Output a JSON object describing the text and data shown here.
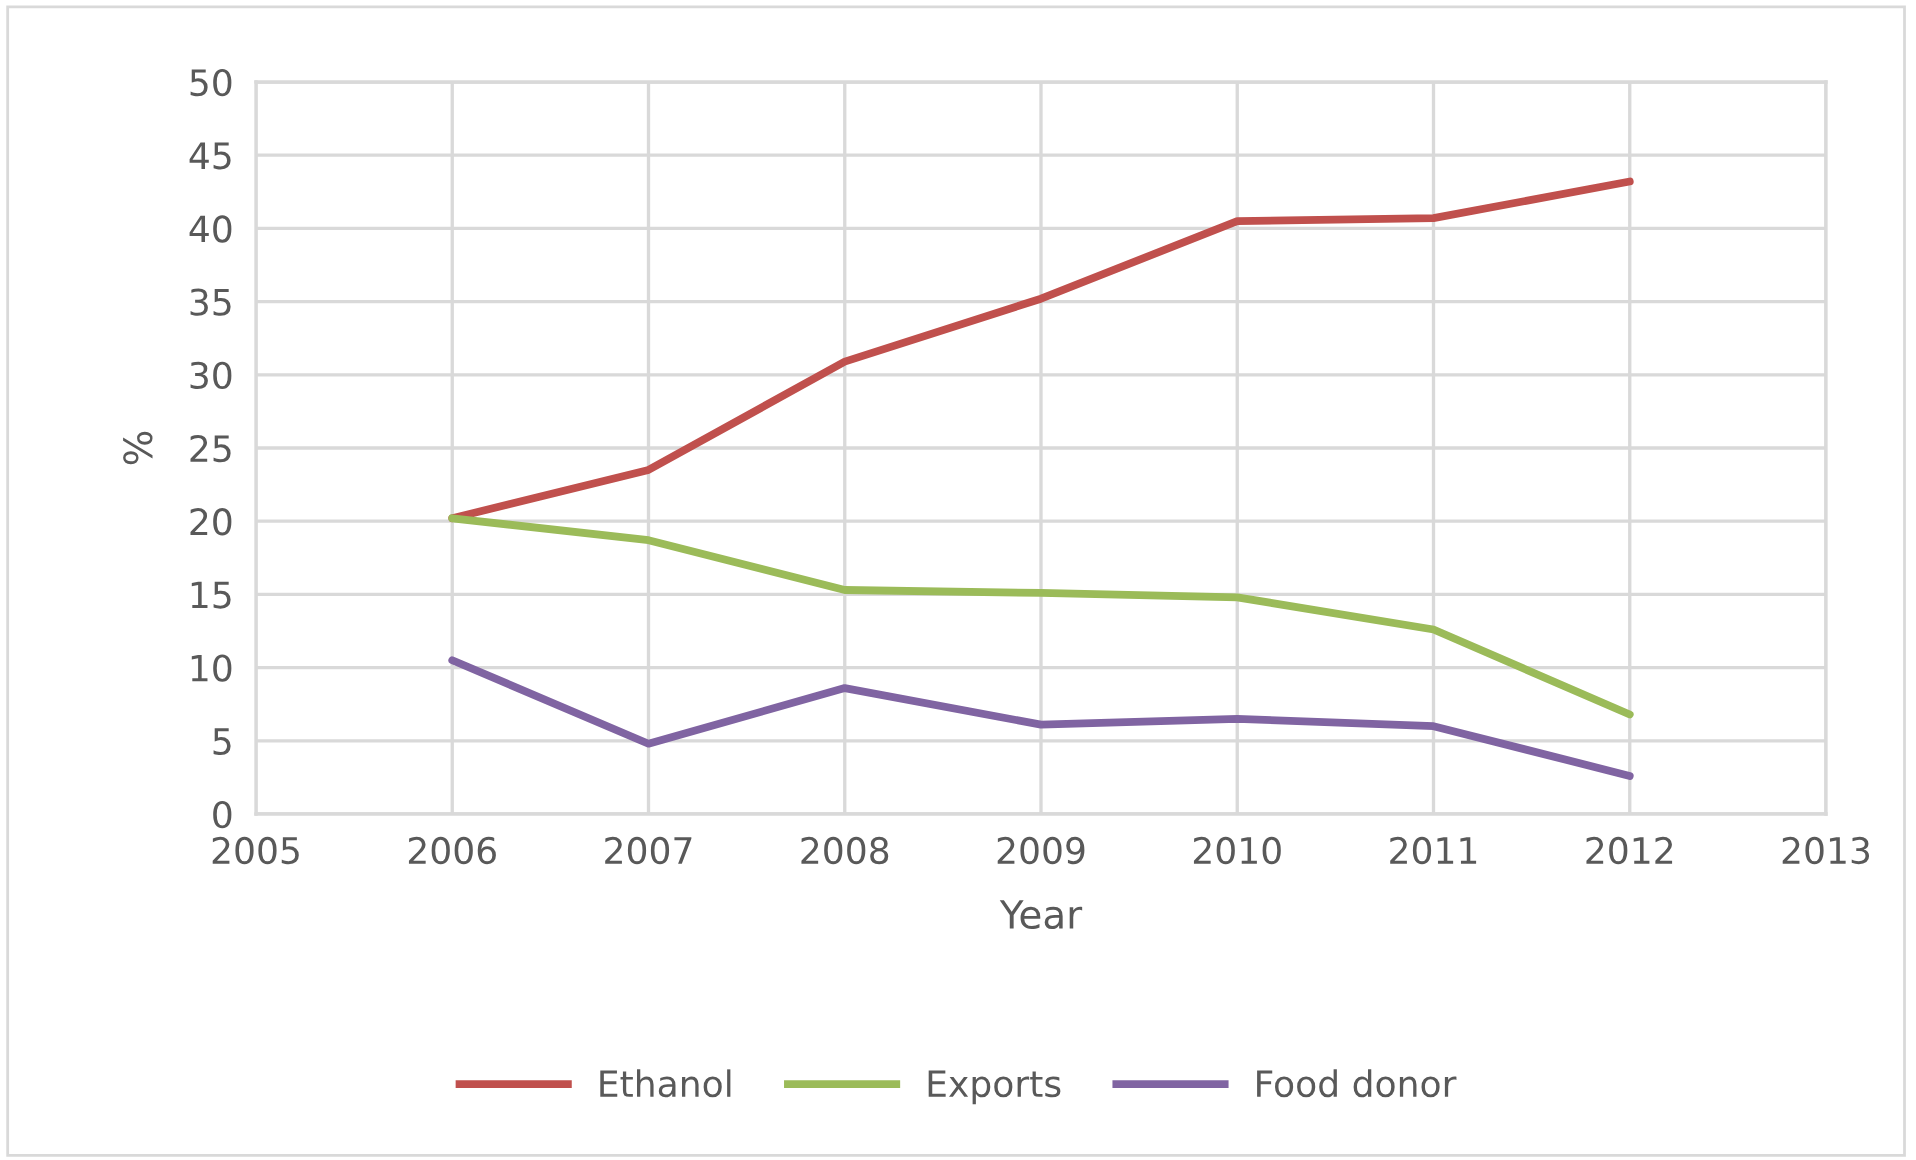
{
  "chart_data": {
    "type": "line",
    "xlabel": "Year",
    "ylabel": "%",
    "x": [
      2006,
      2007,
      2008,
      2009,
      2010,
      2011,
      2012
    ],
    "series": [
      {
        "name": "Ethanol",
        "color": "#c0504d",
        "values": [
          20.2,
          23.5,
          30.9,
          35.2,
          40.5,
          40.7,
          43.2
        ]
      },
      {
        "name": "Exports",
        "color": "#9bbb59",
        "values": [
          20.2,
          18.7,
          15.3,
          15.1,
          14.8,
          12.6,
          6.8
        ]
      },
      {
        "name": "Food donor",
        "color": "#8064a2",
        "values": [
          10.5,
          4.8,
          8.6,
          6.1,
          6.5,
          6.0,
          2.6
        ]
      }
    ],
    "xlim": [
      2005,
      2013
    ],
    "xticks": [
      2005,
      2006,
      2007,
      2008,
      2009,
      2010,
      2011,
      2012,
      2013
    ],
    "ylim": [
      0,
      50
    ],
    "yticks": [
      0,
      5,
      10,
      15,
      20,
      25,
      30,
      35,
      40,
      45,
      50
    ],
    "grid": true,
    "legend": "bottom",
    "marker": "none",
    "line_style": "solid"
  }
}
